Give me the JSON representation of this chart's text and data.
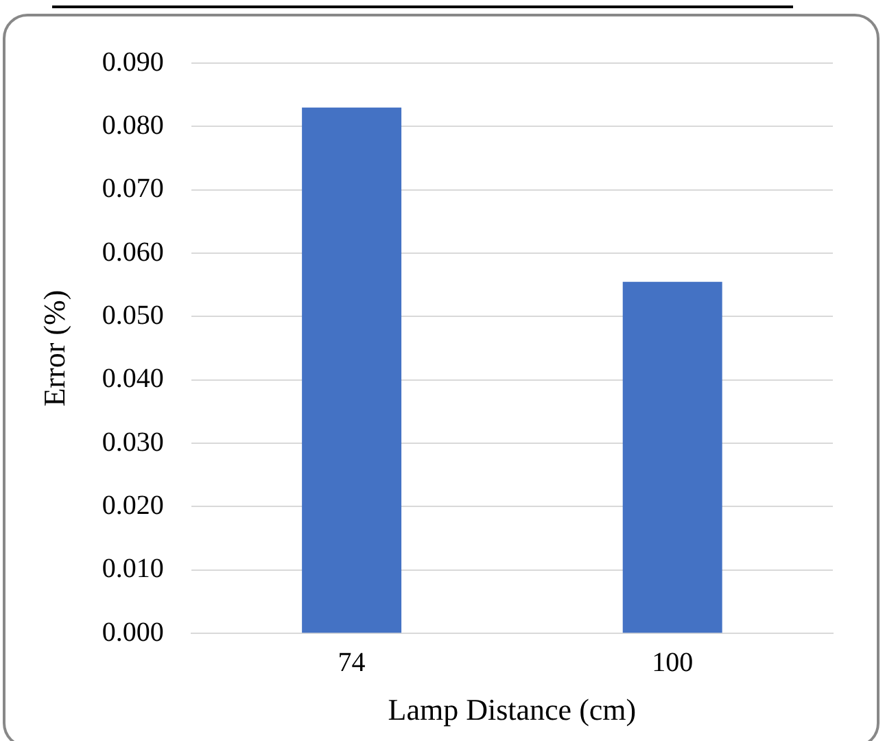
{
  "chart_data": {
    "type": "bar",
    "xlabel": "Lamp Distance (cm)",
    "ylabel": "Error (%)",
    "categories": [
      "74",
      "100"
    ],
    "values": [
      0.083,
      0.0555
    ],
    "color": "#4472c4",
    "ylim": [
      0,
      0.09
    ],
    "yticks": [
      {
        "value": 0,
        "label": "0.000"
      },
      {
        "value": 0.01,
        "label": "0.010"
      },
      {
        "value": 0.02,
        "label": "0.020"
      },
      {
        "value": 0.03,
        "label": "0.030"
      },
      {
        "value": 0.04,
        "label": "0.040"
      },
      {
        "value": 0.05,
        "label": "0.050"
      },
      {
        "value": 0.06,
        "label": "0.060"
      },
      {
        "value": 0.07,
        "label": "0.070"
      },
      {
        "value": 0.08,
        "label": "0.080"
      },
      {
        "value": 0.09,
        "label": "0.090"
      }
    ],
    "grid": "y"
  }
}
